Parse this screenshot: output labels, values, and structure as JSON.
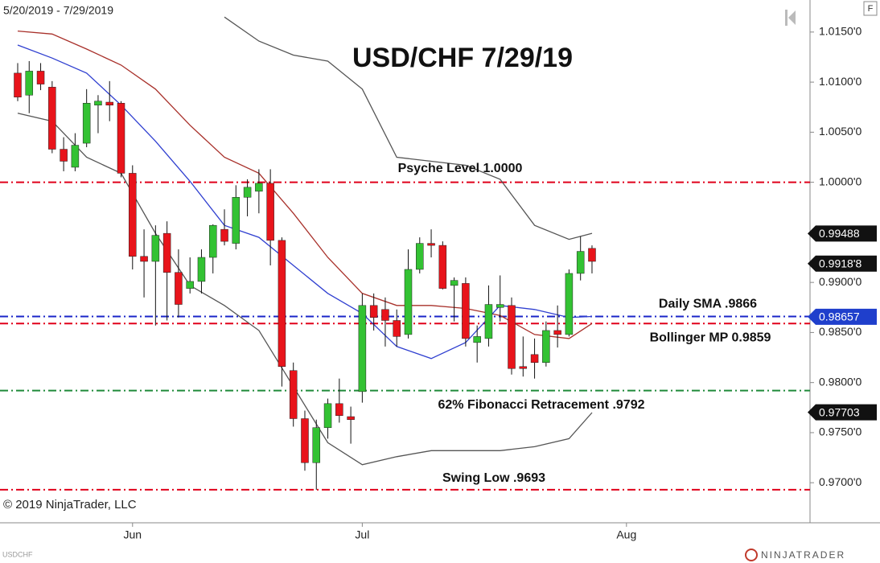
{
  "chart_data": {
    "type": "candlestick",
    "title": "USD/CHF 7/29/19",
    "date_range": "5/20/2019 - 7/29/2019",
    "symbol": "USDCHF",
    "copyright": "© 2019 NinjaTrader, LLC",
    "brand": "NINJATRADER",
    "button": "F",
    "up_color": "#33c233",
    "down_color": "#e8141b",
    "x": [
      0,
      1,
      2,
      3,
      4,
      5,
      6,
      7,
      8,
      9,
      10,
      11,
      12,
      13,
      14,
      15,
      16,
      17,
      18,
      19,
      20,
      21,
      22,
      23,
      24,
      25,
      26,
      27,
      28,
      29,
      30,
      31,
      32,
      33,
      34,
      35,
      36,
      37,
      38,
      39,
      40,
      41,
      42,
      43,
      44,
      45,
      46,
      47,
      48,
      49,
      50
    ],
    "open": [
      1.0109,
      1.0087,
      1.0111,
      1.0095,
      1.0033,
      1.0015,
      1.0039,
      1.0077,
      1.008,
      1.0079,
      1.0009,
      0.9926,
      0.9921,
      0.9949,
      0.991,
      0.9894,
      0.9901,
      0.9925,
      0.9953,
      0.9939,
      0.9985,
      0.9991,
      0.9999,
      0.9942,
      0.9812,
      0.9764,
      0.972,
      0.9755,
      0.9779,
      0.9766,
      0.9791,
      0.9877,
      0.9873,
      0.9862,
      0.9848,
      0.9913,
      0.9939,
      0.9937,
      0.9897,
      0.9899,
      0.984,
      0.9844,
      0.9875,
      0.9877,
      0.9816,
      0.9828,
      0.982,
      0.9852,
      0.9848,
      0.9909,
      0.9934
    ],
    "high": [
      1.0119,
      1.0121,
      1.0119,
      1.0101,
      1.0045,
      1.0049,
      1.0093,
      1.0087,
      1.0101,
      1.0081,
      1.0017,
      0.9953,
      0.9957,
      0.9961,
      0.9933,
      0.9925,
      0.9933,
      0.9958,
      0.9973,
      0.9997,
      1.0003,
      1.0013,
      1.0013,
      0.9945,
      0.982,
      0.9772,
      0.9763,
      0.9784,
      0.9804,
      0.9776,
      0.9889,
      0.9889,
      0.9885,
      0.9873,
      0.9933,
      0.9945,
      0.9953,
      0.9941,
      0.9905,
      0.9905,
      0.9857,
      0.9897,
      0.9907,
      0.9885,
      0.9846,
      0.9844,
      0.9861,
      0.9877,
      0.9913,
      0.9946,
      0.9937
    ],
    "low": [
      1.0081,
      1.0069,
      1.0092,
      1.0029,
      1.0011,
      1.0011,
      1.0035,
      1.0049,
      1.0061,
      1.0005,
      0.9913,
      0.9885,
      0.9857,
      0.9862,
      0.9865,
      0.9889,
      0.9889,
      0.9909,
      0.9937,
      0.9933,
      0.9966,
      0.9969,
      0.9917,
      0.9796,
      0.9756,
      0.9712,
      0.9693,
      0.9744,
      0.976,
      0.9739,
      0.978,
      0.9852,
      0.9836,
      0.9836,
      0.9844,
      0.9909,
      0.9925,
      0.9893,
      0.9861,
      0.9836,
      0.982,
      0.9836,
      0.9861,
      0.9808,
      0.9806,
      0.9804,
      0.9816,
      0.9835,
      0.9846,
      0.9902,
      0.9909
    ],
    "close": [
      1.0085,
      1.0111,
      1.0098,
      1.0033,
      1.0021,
      1.0037,
      1.0079,
      1.0081,
      1.0077,
      1.0009,
      0.9926,
      0.9921,
      0.9947,
      0.991,
      0.9878,
      0.9901,
      0.9925,
      0.9957,
      0.9941,
      0.9985,
      0.9995,
      0.9999,
      0.9942,
      0.9816,
      0.9764,
      0.972,
      0.9755,
      0.9779,
      0.9767,
      0.9763,
      0.9877,
      0.9865,
      0.9862,
      0.9846,
      0.9913,
      0.9939,
      0.9937,
      0.9894,
      0.9902,
      0.9844,
      0.9846,
      0.9878,
      0.9878,
      0.9814,
      0.9814,
      0.982,
      0.9852,
      0.9848,
      0.9909,
      0.9931,
      0.9921
    ],
    "lines": [
      {
        "color": "#555555",
        "x": [
          18,
          21,
          24,
          27,
          30,
          33,
          36,
          39,
          42,
          45,
          48,
          50
        ],
        "values": [
          1.0165,
          1.0141,
          1.0127,
          1.0121,
          1.0093,
          1.0025,
          1.0021,
          1.0017,
          1.0003,
          0.9957,
          0.9943,
          0.9949
        ]
      },
      {
        "color": "#a8302a",
        "x": [
          0,
          3,
          6,
          9,
          12,
          15,
          18,
          21,
          24,
          27,
          30,
          33,
          36,
          39,
          42,
          45,
          48,
          50
        ],
        "values": [
          1.0151,
          1.0148,
          1.0133,
          1.0117,
          1.0093,
          1.0057,
          1.0025,
          1.0009,
          0.9969,
          0.9925,
          0.9889,
          0.9877,
          0.9877,
          0.9874,
          0.9867,
          0.9848,
          0.9844,
          0.9859
        ]
      },
      {
        "color": "#555555",
        "x": [
          0,
          3,
          6,
          9,
          12,
          15,
          18,
          21,
          24,
          27,
          30,
          33,
          36,
          39,
          42,
          45,
          48,
          50
        ],
        "values": [
          1.0069,
          1.0061,
          1.0025,
          1.0009,
          0.9949,
          0.9897,
          0.9877,
          0.9852,
          0.9796,
          0.974,
          0.9718,
          0.9726,
          0.9732,
          0.9732,
          0.9732,
          0.9736,
          0.9744,
          0.977
        ]
      },
      {
        "color": "#2f3fd0",
        "x": [
          0,
          3,
          6,
          9,
          12,
          15,
          18,
          21,
          24,
          27,
          30,
          33,
          36,
          39,
          42,
          45,
          48,
          50
        ],
        "values": [
          1.0137,
          1.0124,
          1.0109,
          1.0077,
          1.0041,
          1.0001,
          0.9957,
          0.9945,
          0.9917,
          0.9889,
          0.9869,
          0.9836,
          0.9824,
          0.984,
          0.9877,
          0.9873,
          0.9865,
          0.9866
        ]
      }
    ],
    "levels": [
      {
        "value": 1.0,
        "label": "Psyche Level 1.0000",
        "color": "#e0001a"
      },
      {
        "value": 0.9866,
        "label": "Daily SMA .9866",
        "color": "#1a24c8"
      },
      {
        "value": 0.9859,
        "label": "Bollinger MP 0.9859",
        "color": "#e0001a"
      },
      {
        "value": 0.9792,
        "label": "62% Fibonacci Retracement .9792",
        "color": "#1f8a3a"
      },
      {
        "value": 0.9693,
        "label": "Swing Low .9693",
        "color": "#e0001a"
      }
    ],
    "price_markers": [
      {
        "value": 0.99488,
        "label": "0.99488",
        "color": "#111111"
      },
      {
        "value": 0.99188,
        "label": "0.9918'8",
        "color": "#111111"
      },
      {
        "value": 0.98657,
        "label": "0.98657",
        "color": "#1f3fcc"
      },
      {
        "value": 0.97703,
        "label": "0.97703",
        "color": "#111111"
      }
    ],
    "xlim": [
      -1.54,
      68.98
    ],
    "xticks": [
      {
        "value": 10,
        "label": "Jun"
      },
      {
        "value": 30,
        "label": "Jul"
      },
      {
        "value": 53,
        "label": "Aug"
      }
    ],
    "ylim": [
      0.966,
      1.0182
    ],
    "yticks": [
      {
        "value": 1.015,
        "label": "1.0150'0"
      },
      {
        "value": 1.01,
        "label": "1.0100'0"
      },
      {
        "value": 1.005,
        "label": "1.0050'0"
      },
      {
        "value": 1.0,
        "label": "1.0000'0"
      },
      {
        "value": 0.99,
        "label": "0.9900'0"
      },
      {
        "value": 0.985,
        "label": "0.9850'0"
      },
      {
        "value": 0.98,
        "label": "0.9800'0"
      },
      {
        "value": 0.975,
        "label": "0.9750'0"
      },
      {
        "value": 0.97,
        "label": "0.9700'0"
      }
    ]
  }
}
